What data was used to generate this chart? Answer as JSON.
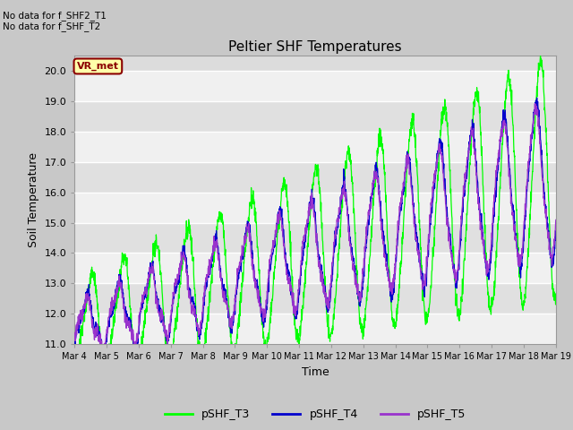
{
  "title": "Peltier SHF Temperatures",
  "xlabel": "Time",
  "ylabel": "Soil Temperature",
  "ylim": [
    11.0,
    20.5
  ],
  "xlim": [
    0,
    360
  ],
  "no_data_text": [
    "No data for f_SHF2_T1",
    "No data for f_SHF_T2"
  ],
  "vr_label": "VR_met",
  "x_tick_labels": [
    "Mar 4",
    "Mar 5",
    "Mar 6",
    "Mar 7",
    "Mar 8",
    "Mar 9",
    "Mar 10",
    "Mar 11",
    "Mar 12",
    "Mar 13",
    "Mar 14",
    "Mar 15",
    "Mar 16",
    "Mar 17",
    "Mar 18",
    "Mar 19"
  ],
  "x_tick_positions": [
    0,
    24,
    48,
    72,
    96,
    120,
    144,
    168,
    192,
    216,
    240,
    264,
    288,
    312,
    336,
    360
  ],
  "y_ticks": [
    11.0,
    12.0,
    13.0,
    14.0,
    15.0,
    16.0,
    17.0,
    18.0,
    19.0,
    20.0
  ],
  "color_T3": "#00FF00",
  "color_T4": "#0000CD",
  "color_T5": "#9933CC",
  "band_colors": [
    "#DCDCDC",
    "#F0F0F0"
  ],
  "legend_labels": [
    "pSHF_T3",
    "pSHF_T4",
    "pSHF_T5"
  ]
}
